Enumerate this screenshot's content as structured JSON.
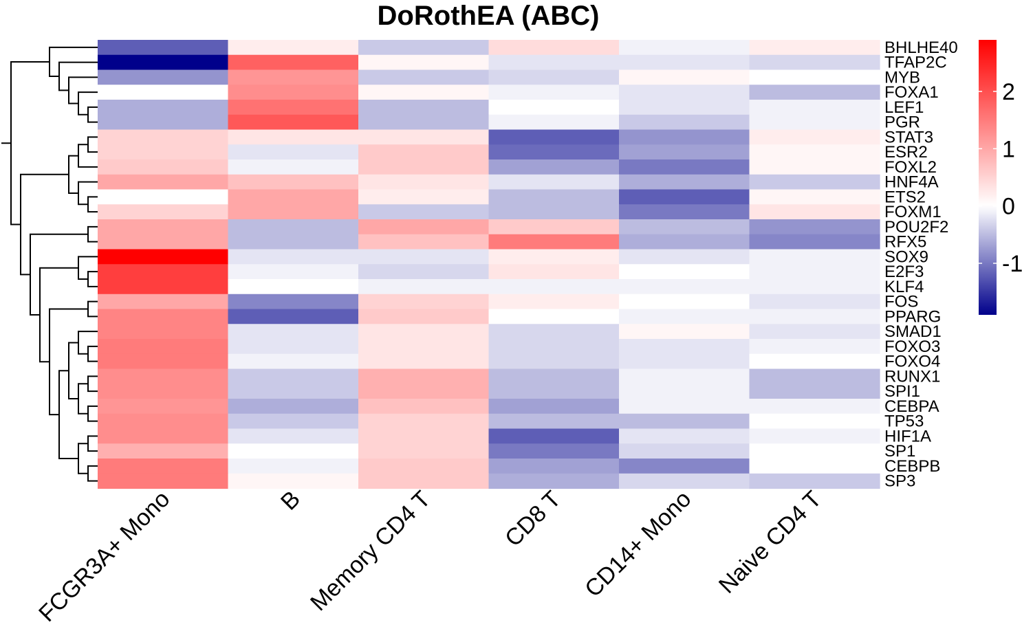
{
  "chart_data": {
    "type": "heatmap",
    "title": "DoRothEA (ABC)",
    "columns": [
      "FCGR3A+ Mono",
      "B",
      "Memory CD4 T",
      "CD8 T",
      "CD14+ Mono",
      "Naive CD4 T"
    ],
    "rows": [
      "BHLHE40",
      "TFAP2C",
      "MYB",
      "FOXA1",
      "LEF1",
      "PGR",
      "STAT3",
      "ESR2",
      "FOXL2",
      "HNF4A",
      "ETS2",
      "FOXM1",
      "POU2F2",
      "RFX5",
      "SOX9",
      "E2F3",
      "KLF4",
      "FOS",
      "PPARG",
      "SMAD1",
      "FOXO3",
      "FOXO4",
      "RUNX1",
      "SPI1",
      "CEBPA",
      "TP53",
      "HIF1A",
      "SP1",
      "CEBPB",
      "SP3"
    ],
    "values": [
      [
        -1.2,
        0.2,
        -0.4,
        0.4,
        -0.1,
        0.2
      ],
      [
        -1.9,
        1.8,
        0.1,
        -0.2,
        -0.2,
        -0.3
      ],
      [
        -0.8,
        1.2,
        -0.4,
        -0.3,
        0.1,
        0.0
      ],
      [
        0.0,
        1.3,
        0.1,
        -0.1,
        -0.2,
        -0.5
      ],
      [
        -0.6,
        1.6,
        -0.5,
        0.0,
        -0.2,
        -0.1
      ],
      [
        -0.6,
        1.9,
        -0.5,
        -0.1,
        -0.4,
        -0.1
      ],
      [
        0.5,
        0.3,
        0.3,
        -1.2,
        -0.8,
        0.2
      ],
      [
        0.5,
        -0.2,
        0.6,
        -1.1,
        -0.7,
        0.1
      ],
      [
        0.6,
        -0.1,
        0.6,
        -0.7,
        -1.0,
        0.1
      ],
      [
        1.0,
        0.7,
        0.3,
        -0.2,
        -0.6,
        -0.4
      ],
      [
        0.0,
        1.0,
        0.2,
        -0.5,
        -1.2,
        0.1
      ],
      [
        0.5,
        1.0,
        -0.4,
        -0.5,
        -1.0,
        0.3
      ],
      [
        1.0,
        -0.5,
        1.0,
        0.6,
        -0.5,
        -0.8
      ],
      [
        1.0,
        -0.5,
        0.7,
        1.5,
        -0.6,
        -0.9
      ],
      [
        2.9,
        -0.2,
        -0.2,
        0.2,
        -0.2,
        -0.1
      ],
      [
        2.2,
        -0.1,
        -0.3,
        0.3,
        0.0,
        -0.1
      ],
      [
        2.2,
        0.0,
        -0.1,
        -0.1,
        -0.1,
        -0.1
      ],
      [
        1.0,
        -0.9,
        0.5,
        0.2,
        0.0,
        -0.2
      ],
      [
        1.4,
        -1.2,
        0.6,
        0.0,
        -0.1,
        -0.1
      ],
      [
        1.4,
        -0.2,
        0.3,
        -0.3,
        0.1,
        -0.2
      ],
      [
        1.5,
        -0.2,
        0.3,
        -0.3,
        -0.2,
        -0.1
      ],
      [
        1.5,
        -0.1,
        0.3,
        -0.3,
        -0.2,
        0.0
      ],
      [
        1.3,
        -0.4,
        0.9,
        -0.5,
        -0.1,
        -0.5
      ],
      [
        1.3,
        -0.4,
        0.9,
        -0.5,
        -0.1,
        -0.5
      ],
      [
        1.2,
        -0.6,
        0.7,
        -0.7,
        -0.1,
        -0.1
      ],
      [
        1.3,
        -0.4,
        0.5,
        -0.5,
        -0.5,
        0.0
      ],
      [
        1.3,
        -0.2,
        0.5,
        -1.2,
        -0.2,
        -0.1
      ],
      [
        0.9,
        0.0,
        0.5,
        -1.0,
        -0.3,
        0.0
      ],
      [
        1.5,
        -0.1,
        0.6,
        -0.7,
        -0.9,
        0.0
      ],
      [
        1.5,
        0.1,
        0.6,
        -0.6,
        -0.3,
        -0.4
      ]
    ],
    "colorbar": {
      "min": -1.9,
      "max": 2.9,
      "ticks": [
        2,
        1,
        0,
        -1
      ],
      "tick_labels": [
        "2",
        "1",
        "0",
        "-1"
      ],
      "low_color": "#00008B",
      "mid_color": "#FFFFFF",
      "high_color": "#FF0000"
    }
  }
}
